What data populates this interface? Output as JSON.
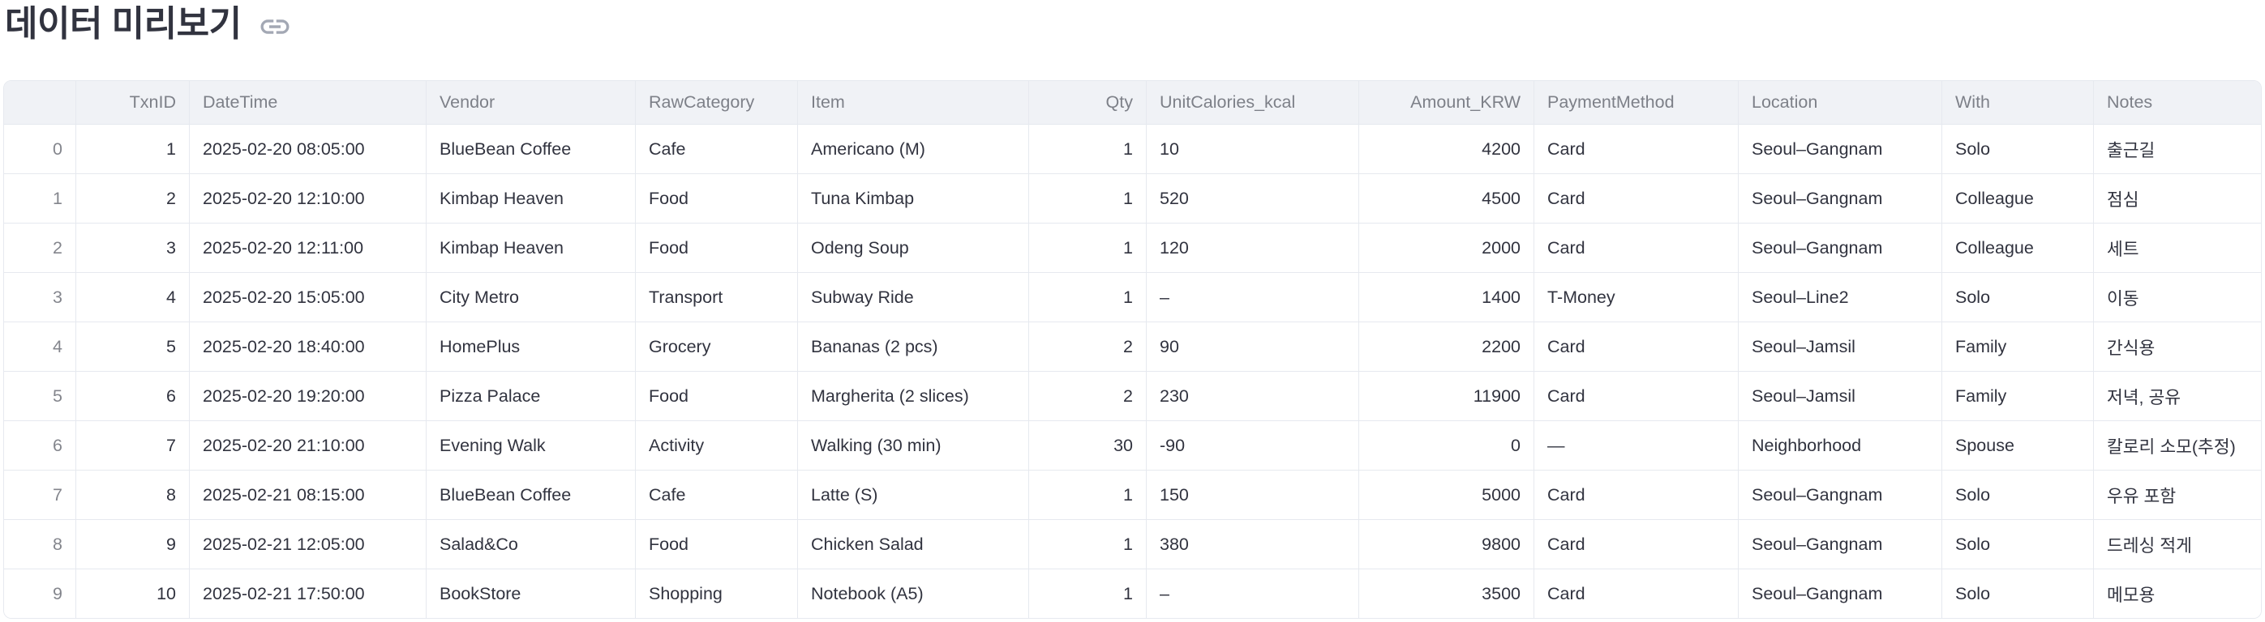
{
  "page": {
    "title": "데이터 미리보기"
  },
  "icons": {
    "anchor": "link-icon"
  },
  "colors": {
    "text": "#31333f",
    "faded_text": "rgba(49,51,63,0.6)",
    "header_bg": "#f0f2f6",
    "border": "#e6e9ef",
    "icon": "#a3a8b4"
  },
  "table": {
    "columns": [
      {
        "label": "",
        "align": "right"
      },
      {
        "label": "TxnID",
        "align": "right"
      },
      {
        "label": "DateTime",
        "align": "left"
      },
      {
        "label": "Vendor",
        "align": "left"
      },
      {
        "label": "RawCategory",
        "align": "left"
      },
      {
        "label": "Item",
        "align": "left"
      },
      {
        "label": "Qty",
        "align": "right"
      },
      {
        "label": "UnitCalories_kcal",
        "align": "left"
      },
      {
        "label": "Amount_KRW",
        "align": "right"
      },
      {
        "label": "PaymentMethod",
        "align": "left"
      },
      {
        "label": "Location",
        "align": "left"
      },
      {
        "label": "With",
        "align": "left"
      },
      {
        "label": "Notes",
        "align": "left"
      }
    ],
    "rows": [
      [
        "0",
        "1",
        "2025-02-20 08:05:00",
        "BlueBean Coffee",
        "Cafe",
        "Americano (M)",
        "1",
        "10",
        "4200",
        "Card",
        "Seoul–Gangnam",
        "Solo",
        "출근길"
      ],
      [
        "1",
        "2",
        "2025-02-20 12:10:00",
        "Kimbap Heaven",
        "Food",
        "Tuna Kimbap",
        "1",
        "520",
        "4500",
        "Card",
        "Seoul–Gangnam",
        "Colleague",
        "점심"
      ],
      [
        "2",
        "3",
        "2025-02-20 12:11:00",
        "Kimbap Heaven",
        "Food",
        "Odeng Soup",
        "1",
        "120",
        "2000",
        "Card",
        "Seoul–Gangnam",
        "Colleague",
        "세트"
      ],
      [
        "3",
        "4",
        "2025-02-20 15:05:00",
        "City Metro",
        "Transport",
        "Subway Ride",
        "1",
        "–",
        "1400",
        "T-Money",
        "Seoul–Line2",
        "Solo",
        "이동"
      ],
      [
        "4",
        "5",
        "2025-02-20 18:40:00",
        "HomePlus",
        "Grocery",
        "Bananas (2 pcs)",
        "2",
        "90",
        "2200",
        "Card",
        "Seoul–Jamsil",
        "Family",
        "간식용"
      ],
      [
        "5",
        "6",
        "2025-02-20 19:20:00",
        "Pizza Palace",
        "Food",
        "Margherita (2 slices)",
        "2",
        "230",
        "11900",
        "Card",
        "Seoul–Jamsil",
        "Family",
        "저녁, 공유"
      ],
      [
        "6",
        "7",
        "2025-02-20 21:10:00",
        "Evening Walk",
        "Activity",
        "Walking (30 min)",
        "30",
        "-90",
        "0",
        "—",
        "Neighborhood",
        "Spouse",
        "칼로리 소모(추정)"
      ],
      [
        "7",
        "8",
        "2025-02-21 08:15:00",
        "BlueBean Coffee",
        "Cafe",
        "Latte (S)",
        "1",
        "150",
        "5000",
        "Card",
        "Seoul–Gangnam",
        "Solo",
        "우유 포함"
      ],
      [
        "8",
        "9",
        "2025-02-21 12:05:00",
        "Salad&Co",
        "Food",
        "Chicken Salad",
        "1",
        "380",
        "9800",
        "Card",
        "Seoul–Gangnam",
        "Solo",
        "드레싱 적게"
      ],
      [
        "9",
        "10",
        "2025-02-21 17:50:00",
        "BookStore",
        "Shopping",
        "Notebook (A5)",
        "1",
        "–",
        "3500",
        "Card",
        "Seoul–Gangnam",
        "Solo",
        "메모용"
      ]
    ]
  }
}
